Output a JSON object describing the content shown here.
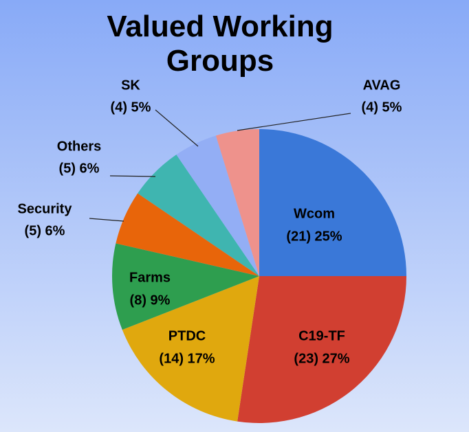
{
  "chart_data": {
    "type": "pie",
    "title": "Valued Working Groups",
    "categories": [
      "Wcom",
      "C19-TF",
      "PTDC",
      "Farms",
      "Security",
      "Others",
      "SK",
      "AVAG"
    ],
    "values": [
      21,
      23,
      14,
      8,
      5,
      5,
      4,
      4
    ],
    "value_labels": [
      "(21) 25%",
      "(23) 27%",
      "(14) 17%",
      "(8) 9%",
      "(5) 6%",
      "(5) 6%",
      "(4) 5%",
      "(4) 5%"
    ],
    "colors": [
      "#3a78d8",
      "#d13f31",
      "#e0a80e",
      "#2e9e4f",
      "#e8650a",
      "#3fb5b0",
      "#93aef5",
      "#ee928c"
    ]
  }
}
